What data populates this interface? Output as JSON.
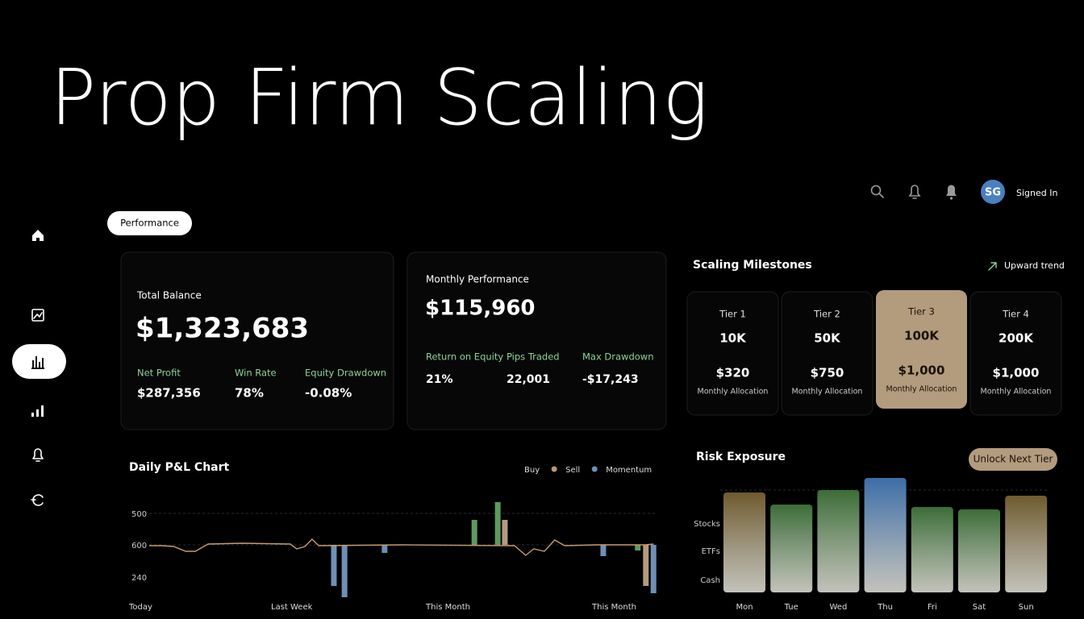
{
  "title": "Prop Firm Scaling",
  "user": {
    "initials": "SG",
    "status": "Signed In"
  },
  "tab": "Performance",
  "balance_card": {
    "label": "Total Balance",
    "value": "$1,323,683",
    "stats": [
      {
        "label": "Net Profit",
        "value": "$287,356"
      },
      {
        "label": "Win Rate",
        "value": "78%"
      },
      {
        "label": "Equity Drawdown",
        "value": "-0.08%"
      }
    ]
  },
  "monthly_card": {
    "label": "Monthly Performance",
    "value": "$115,960",
    "stats": [
      {
        "label": "Return on Equity",
        "value": "21%"
      },
      {
        "label": "Pips Traded",
        "value": "22,001"
      },
      {
        "label": "Max Drawdown",
        "value": "-$17,243"
      }
    ]
  },
  "milestones": {
    "title": "Scaling Milestones",
    "trend": "Upward trend",
    "tiers": [
      {
        "name": "Tier 1",
        "size": "10K",
        "amount": "$320",
        "note": "Monthly Allocation",
        "active": false
      },
      {
        "name": "Tier 2",
        "size": "50K",
        "amount": "$750",
        "note": "Monthly Allocation",
        "active": false
      },
      {
        "name": "Tier 3",
        "size": "100K",
        "amount": "$1,000",
        "note": "Monthly Allocation",
        "active": true
      },
      {
        "name": "Tier 4",
        "size": "200K",
        "amount": "$1,000",
        "note": "Monthly Allocation",
        "active": false
      }
    ]
  },
  "risk_button": "Unlock Next Tier",
  "chart_data": [
    {
      "type": "bar-line",
      "title": "Daily P&L Chart",
      "y_labels": [
        "500",
        "600",
        "240"
      ],
      "x_labels": [
        "Today",
        "Last Week",
        "This Month",
        "This Month"
      ],
      "xlim": [
        0,
        100
      ],
      "ylim": [
        -65,
        60
      ],
      "line": {
        "color": "#c89a6e",
        "x": [
          0,
          2.4,
          4.8,
          7.2,
          9.1,
          11.6,
          18.3,
          27.8,
          29.1,
          30.7,
          32.1,
          33.4,
          50.1,
          70.7,
          72.0,
          74.2,
          75.8,
          77.9,
          79.9,
          81.9,
          88.2,
          96.2,
          97.8,
          99.4
        ],
        "values": [
          -1,
          -1,
          -2,
          -8,
          -8,
          1,
          2,
          1,
          -5,
          -2,
          7,
          -1,
          0,
          -1,
          -1,
          -13,
          -5,
          -8,
          6,
          -1,
          0,
          0,
          0,
          1
        ]
      },
      "series": [
        {
          "name": "Buy",
          "color": "#5e9a5e",
          "x": [
            64.1,
            68.7,
            96.3
          ],
          "values": [
            31,
            53,
            -7
          ]
        },
        {
          "name": "Sell",
          "color": "#b39b7e",
          "x": [
            70.1,
            97.9
          ],
          "values": [
            31,
            -51
          ]
        },
        {
          "name": "Momentum",
          "color": "#6f8fb5",
          "x": [
            36.4,
            38.5,
            46.4,
            89.5,
            99.4
          ],
          "values": [
            -51,
            -65,
            -10,
            -14,
            -60
          ]
        }
      ]
    },
    {
      "type": "bar",
      "title": "Risk Exposure",
      "y_labels": [
        "Stocks",
        "ETFs",
        "Cash"
      ],
      "categories": [
        "Mon",
        "Tue",
        "Wed",
        "Thu",
        "Fri",
        "Sat",
        "Sun"
      ],
      "values": [
        124,
        109,
        127,
        142,
        106,
        103,
        120
      ],
      "colors": [
        "#6e5a2e",
        "#3b6d38",
        "#3b6d38",
        "#3d6ea8",
        "#3b6d38",
        "#3b6d38",
        "#6e5a2e"
      ],
      "ylim": [
        0,
        150
      ]
    }
  ]
}
